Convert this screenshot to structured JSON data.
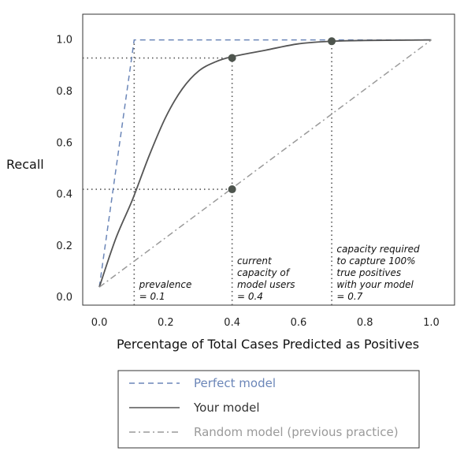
{
  "chart_data": {
    "type": "line",
    "xlabel": "Percentage of Total Cases Predicted as Positives",
    "ylabel": "Recall",
    "xlim": [
      -0.05,
      1.07
    ],
    "ylim": [
      -0.03,
      1.1
    ],
    "x_ticks": [
      "0.0",
      "0.2",
      "0.4",
      "0.6",
      "0.8",
      "1.0"
    ],
    "y_ticks": [
      "0.0",
      "0.2",
      "0.4",
      "0.6",
      "0.8",
      "1.0"
    ],
    "grid": false,
    "legend_position": "bottom",
    "series": [
      {
        "name": "Perfect model",
        "style": "dashed",
        "color": "#6b86b8",
        "x": [
          0.0,
          0.105,
          1.0
        ],
        "y": [
          0.04,
          1.0,
          1.0
        ]
      },
      {
        "name": "Your model",
        "style": "solid",
        "color": "#555555",
        "x": [
          0.0,
          0.05,
          0.1,
          0.15,
          0.2,
          0.25,
          0.3,
          0.35,
          0.4,
          0.5,
          0.6,
          0.7,
          0.8,
          0.9,
          1.0
        ],
        "y": [
          0.04,
          0.23,
          0.38,
          0.55,
          0.7,
          0.81,
          0.88,
          0.915,
          0.935,
          0.96,
          0.985,
          0.995,
          0.998,
          0.999,
          1.0
        ]
      },
      {
        "name": "Random model (previous practice)",
        "style": "dashdot",
        "color": "#9a9a9a",
        "x": [
          0.0,
          1.0
        ],
        "y": [
          0.04,
          1.0
        ]
      }
    ],
    "markers": [
      {
        "x": 0.4,
        "y": 0.93
      },
      {
        "x": 0.4,
        "y": 0.42
      },
      {
        "x": 0.7,
        "y": 0.995
      }
    ],
    "reference_lines": [
      {
        "orientation": "vertical",
        "x": 0.105,
        "y_to": 1.0
      },
      {
        "orientation": "vertical",
        "x": 0.4,
        "y_to": 0.93
      },
      {
        "orientation": "vertical",
        "x": 0.7,
        "y_to": 0.995
      },
      {
        "orientation": "horizontal",
        "y": 0.93,
        "x_to": 0.4
      },
      {
        "orientation": "horizontal",
        "y": 0.42,
        "x_to": 0.4
      }
    ],
    "annotations": [
      {
        "x": 0.12,
        "lines": [
          "prevalence",
          "= 0.1"
        ]
      },
      {
        "x": 0.415,
        "lines": [
          "current",
          "capacity of",
          "model users",
          "=  0.4"
        ]
      },
      {
        "x": 0.715,
        "lines": [
          "capacity required",
          "to capture 100%",
          "true positives",
          "with your model",
          "=  0.7"
        ]
      }
    ]
  }
}
